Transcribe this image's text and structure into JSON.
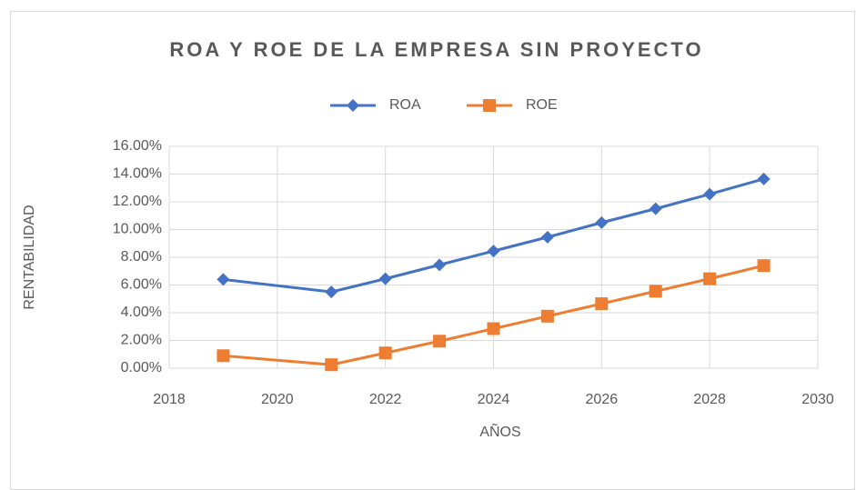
{
  "chart_data": {
    "type": "line",
    "title": "ROA Y ROE DE LA EMPRESA SIN PROYECTO",
    "x_label": "AÑOS",
    "y_label": "RENTABILIDAD",
    "x": [
      2019,
      2021,
      2022,
      2023,
      2024,
      2025,
      2026,
      2027,
      2028,
      2029
    ],
    "series": [
      {
        "name": "ROA",
        "color": "#4472c4",
        "marker": "diamond",
        "values": [
          6.4,
          5.5,
          6.45,
          7.45,
          8.45,
          9.45,
          10.5,
          11.5,
          12.55,
          13.65
        ]
      },
      {
        "name": "ROE",
        "color": "#ed7d31",
        "marker": "square",
        "values": [
          0.9,
          0.25,
          1.1,
          1.95,
          2.85,
          3.75,
          4.65,
          5.55,
          6.45,
          7.4
        ]
      }
    ],
    "xlim": [
      2018,
      2030
    ],
    "xticks": [
      2018,
      2020,
      2022,
      2024,
      2026,
      2028,
      2030
    ],
    "ylim": [
      0,
      16
    ],
    "yticks": [
      {
        "value": 0,
        "label": "0.00%"
      },
      {
        "value": 2,
        "label": "2.00%"
      },
      {
        "value": 4,
        "label": "4.00%"
      },
      {
        "value": 6,
        "label": "6.00%"
      },
      {
        "value": 8,
        "label": "8.00%"
      },
      {
        "value": 10,
        "label": "10.00%"
      },
      {
        "value": 12,
        "label": "12.00%"
      },
      {
        "value": 14,
        "label": "14.00%"
      },
      {
        "value": 16,
        "label": "16.00%"
      }
    ],
    "grid": true,
    "legend": "top"
  }
}
